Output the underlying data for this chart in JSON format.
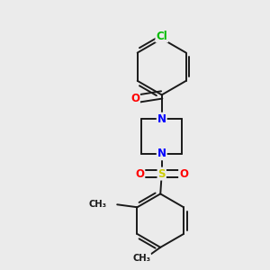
{
  "background_color": "#ebebeb",
  "bond_color": "#1a1a1a",
  "N_color": "#0000ff",
  "O_color": "#ff0000",
  "S_color": "#cccc00",
  "Cl_color": "#00bb00",
  "bond_lw": 1.4,
  "font_size_atom": 8.5,
  "figsize": [
    3.0,
    3.0
  ],
  "dpi": 100,
  "xlim": [
    0,
    10
  ],
  "ylim": [
    0,
    10
  ]
}
